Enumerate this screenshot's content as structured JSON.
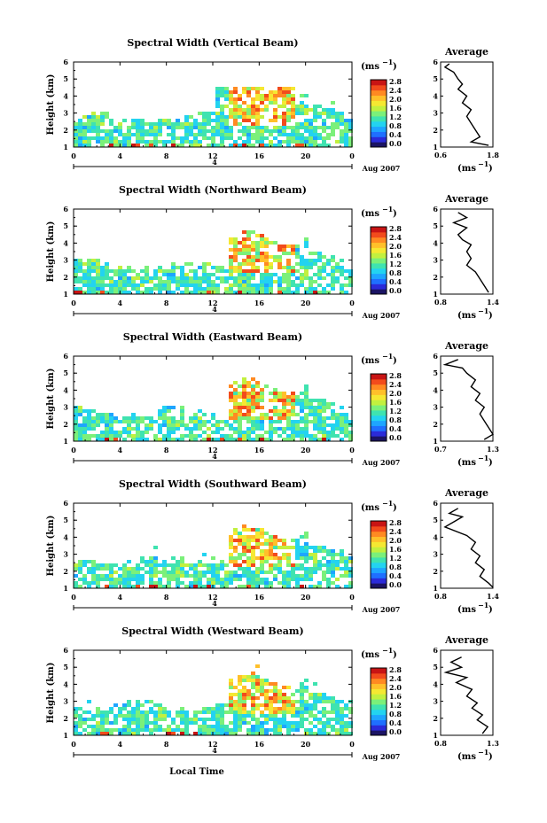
{
  "chart_data": [
    {
      "type": "heatmap",
      "beam": "vertical",
      "title": "Spectral Width (Vertical Beam)",
      "ylabel": "Height (km)",
      "ylim": [
        1,
        6
      ],
      "y_ticks": [
        "1",
        "2",
        "3",
        "4",
        "5",
        "6"
      ],
      "x_ticks": [
        "0",
        "4",
        "8",
        "12",
        "16",
        "20",
        "0"
      ],
      "xlim": [
        0,
        24
      ],
      "date_label": "Aug 2007",
      "date_day": "4",
      "profile": {
        "title": "Average",
        "xlabel": "(ms",
        "xlabel_exp": "−1",
        "xlabel_close": ")",
        "xlim": [
          0.6,
          1.8
        ],
        "x_ticks": [
          "0.6",
          "1.8"
        ],
        "points": [
          [
            0.8,
            5.9
          ],
          [
            0.7,
            5.7
          ],
          [
            0.9,
            5.4
          ],
          [
            1.0,
            5.0
          ],
          [
            1.1,
            4.7
          ],
          [
            1.0,
            4.4
          ],
          [
            1.2,
            4.0
          ],
          [
            1.1,
            3.6
          ],
          [
            1.3,
            3.2
          ],
          [
            1.2,
            2.8
          ],
          [
            1.3,
            2.4
          ],
          [
            1.4,
            2.0
          ],
          [
            1.5,
            1.6
          ],
          [
            1.3,
            1.3
          ],
          [
            1.7,
            1.1
          ]
        ]
      }
    },
    {
      "type": "heatmap",
      "beam": "northward",
      "title": "Spectral Width (Northward Beam)",
      "ylabel": "Height (km)",
      "ylim": [
        1,
        6
      ],
      "y_ticks": [
        "1",
        "2",
        "3",
        "4",
        "5",
        "6"
      ],
      "x_ticks": [
        "0",
        "4",
        "8",
        "12",
        "16",
        "20",
        "0"
      ],
      "xlim": [
        0,
        24
      ],
      "date_label": "Aug 2007",
      "date_day": "4",
      "profile": {
        "title": "Average",
        "xlabel": "(ms",
        "xlabel_exp": "−1",
        "xlabel_close": ")",
        "xlim": [
          0.8,
          1.4
        ],
        "x_ticks": [
          "0.8",
          "1.4"
        ],
        "points": [
          [
            1.0,
            5.8
          ],
          [
            1.1,
            5.5
          ],
          [
            0.95,
            5.2
          ],
          [
            1.1,
            4.9
          ],
          [
            1.0,
            4.5
          ],
          [
            1.05,
            4.2
          ],
          [
            1.15,
            3.9
          ],
          [
            1.1,
            3.5
          ],
          [
            1.15,
            3.1
          ],
          [
            1.1,
            2.7
          ],
          [
            1.2,
            2.3
          ],
          [
            1.25,
            1.9
          ],
          [
            1.3,
            1.5
          ],
          [
            1.35,
            1.1
          ]
        ]
      }
    },
    {
      "type": "heatmap",
      "beam": "eastward",
      "title": "Spectral Width (Eastward Beam)",
      "ylabel": "Height (km)",
      "ylim": [
        1,
        6
      ],
      "y_ticks": [
        "1",
        "2",
        "3",
        "4",
        "5",
        "6"
      ],
      "x_ticks": [
        "0",
        "4",
        "8",
        "12",
        "16",
        "20",
        "0"
      ],
      "xlim": [
        0,
        24
      ],
      "date_label": "Aug 2007",
      "date_day": "4",
      "profile": {
        "title": "Average",
        "xlabel": "(ms",
        "xlabel_exp": "−1",
        "xlabel_close": ")",
        "xlim": [
          0.7,
          1.3
        ],
        "x_ticks": [
          "0.7",
          "1.3"
        ],
        "points": [
          [
            0.9,
            5.8
          ],
          [
            0.75,
            5.5
          ],
          [
            0.95,
            5.3
          ],
          [
            1.0,
            5.0
          ],
          [
            1.1,
            4.6
          ],
          [
            1.05,
            4.2
          ],
          [
            1.15,
            3.8
          ],
          [
            1.1,
            3.4
          ],
          [
            1.2,
            3.0
          ],
          [
            1.15,
            2.6
          ],
          [
            1.2,
            2.2
          ],
          [
            1.25,
            1.8
          ],
          [
            1.3,
            1.4
          ],
          [
            1.2,
            1.1
          ]
        ]
      }
    },
    {
      "type": "heatmap",
      "beam": "southward",
      "title": "Spectral Width (Southward Beam)",
      "ylabel": "Height (km)",
      "ylim": [
        1,
        6
      ],
      "y_ticks": [
        "1",
        "2",
        "3",
        "4",
        "5",
        "6"
      ],
      "x_ticks": [
        "0",
        "4",
        "8",
        "12",
        "16",
        "20",
        "0"
      ],
      "xlim": [
        0,
        24
      ],
      "date_label": "Aug 2007",
      "date_day": "4",
      "profile": {
        "title": "Average",
        "xlabel": "(ms",
        "xlabel_exp": "−1",
        "xlabel_close": ")",
        "xlim": [
          0.8,
          1.4
        ],
        "x_ticks": [
          "0.8",
          "1.4"
        ],
        "points": [
          [
            1.0,
            5.7
          ],
          [
            0.9,
            5.4
          ],
          [
            1.05,
            5.2
          ],
          [
            0.95,
            4.9
          ],
          [
            0.85,
            4.6
          ],
          [
            1.1,
            4.1
          ],
          [
            1.2,
            3.7
          ],
          [
            1.15,
            3.3
          ],
          [
            1.25,
            2.9
          ],
          [
            1.2,
            2.5
          ],
          [
            1.3,
            2.1
          ],
          [
            1.25,
            1.7
          ],
          [
            1.35,
            1.3
          ],
          [
            1.4,
            1.05
          ]
        ]
      }
    },
    {
      "type": "heatmap",
      "beam": "westward",
      "title": "Spectral Width (Westward Beam)",
      "ylabel": "Height (km)",
      "ylim": [
        1,
        6
      ],
      "y_ticks": [
        "1",
        "2",
        "3",
        "4",
        "5",
        "6"
      ],
      "x_ticks": [
        "0",
        "4",
        "8",
        "12",
        "16",
        "20",
        "0"
      ],
      "xlim": [
        0,
        24
      ],
      "date_label": "Aug 2007",
      "date_day": "4",
      "xlabel": "Local Time",
      "profile": {
        "title": "Average",
        "xlabel": "(ms",
        "xlabel_exp": "−1",
        "xlabel_close": ")",
        "xlim": [
          0.8,
          1.3
        ],
        "x_ticks": [
          "0.8",
          "1.3"
        ],
        "points": [
          [
            1.0,
            5.6
          ],
          [
            0.9,
            5.3
          ],
          [
            1.0,
            5.0
          ],
          [
            0.85,
            4.7
          ],
          [
            1.05,
            4.4
          ],
          [
            0.95,
            4.1
          ],
          [
            1.1,
            3.7
          ],
          [
            1.05,
            3.3
          ],
          [
            1.15,
            2.9
          ],
          [
            1.1,
            2.6
          ],
          [
            1.2,
            2.2
          ],
          [
            1.15,
            1.9
          ],
          [
            1.25,
            1.5
          ],
          [
            1.2,
            1.1
          ]
        ]
      }
    }
  ],
  "colorbar": {
    "unit": "(ms",
    "unit_exp": "−1",
    "unit_close": ")",
    "labels": [
      "0.0",
      "0.4",
      "0.8",
      "1.2",
      "1.6",
      "2.0",
      "2.4",
      "2.8"
    ],
    "colors": [
      "#1b1464",
      "#2b2bd9",
      "#1f6fff",
      "#1ea5ff",
      "#23d3f0",
      "#3fe3b0",
      "#7bf07a",
      "#c2f03f",
      "#f5e832",
      "#ffc02a",
      "#ff8a22",
      "#f24b1c",
      "#c81414"
    ]
  }
}
